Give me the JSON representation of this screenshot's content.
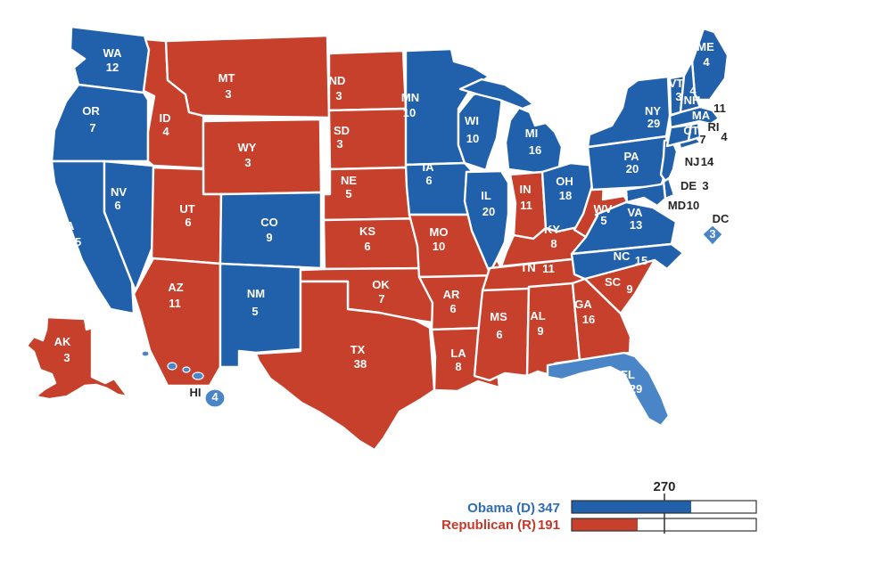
{
  "map": {
    "name": "U.S. presidential electoral college results map"
  },
  "colors": {
    "democrat": "#2160ab",
    "democrat_light": "#4a85c8",
    "republican": "#c7402c",
    "text_dark": "#262626",
    "legend_democrat_text": "#2f6cb6",
    "legend_republican_text": "#c3392a",
    "background": "#ffffff"
  },
  "states": [
    {
      "abbr": "WA",
      "votes": 12,
      "party": "D"
    },
    {
      "abbr": "OR",
      "votes": 7,
      "party": "D"
    },
    {
      "abbr": "CA",
      "votes": 55,
      "party": "D"
    },
    {
      "abbr": "NV",
      "votes": 6,
      "party": "D"
    },
    {
      "abbr": "ID",
      "votes": 4,
      "party": "R"
    },
    {
      "abbr": "MT",
      "votes": 3,
      "party": "R"
    },
    {
      "abbr": "WY",
      "votes": 3,
      "party": "R"
    },
    {
      "abbr": "UT",
      "votes": 6,
      "party": "R"
    },
    {
      "abbr": "CO",
      "votes": 9,
      "party": "D"
    },
    {
      "abbr": "AZ",
      "votes": 11,
      "party": "R"
    },
    {
      "abbr": "NM",
      "votes": 5,
      "party": "D"
    },
    {
      "abbr": "AK",
      "votes": 3,
      "party": "R"
    },
    {
      "abbr": "HI",
      "votes": 4,
      "party": "D",
      "light": true
    },
    {
      "abbr": "ND",
      "votes": 3,
      "party": "R"
    },
    {
      "abbr": "SD",
      "votes": 3,
      "party": "R"
    },
    {
      "abbr": "NE",
      "votes": 5,
      "party": "R"
    },
    {
      "abbr": "KS",
      "votes": 6,
      "party": "R"
    },
    {
      "abbr": "OK",
      "votes": 7,
      "party": "R"
    },
    {
      "abbr": "TX",
      "votes": 38,
      "party": "R"
    },
    {
      "abbr": "MN",
      "votes": 10,
      "party": "D"
    },
    {
      "abbr": "IA",
      "votes": 6,
      "party": "D"
    },
    {
      "abbr": "MO",
      "votes": 10,
      "party": "R"
    },
    {
      "abbr": "AR",
      "votes": 6,
      "party": "R"
    },
    {
      "abbr": "LA",
      "votes": 8,
      "party": "R"
    },
    {
      "abbr": "WI",
      "votes": 10,
      "party": "D"
    },
    {
      "abbr": "IL",
      "votes": 20,
      "party": "D"
    },
    {
      "abbr": "MS",
      "votes": 6,
      "party": "R"
    },
    {
      "abbr": "MI",
      "votes": 16,
      "party": "D"
    },
    {
      "abbr": "IN",
      "votes": 11,
      "party": "R"
    },
    {
      "abbr": "OH",
      "votes": 18,
      "party": "D"
    },
    {
      "abbr": "KY",
      "votes": 8,
      "party": "R"
    },
    {
      "abbr": "TN",
      "votes": 11,
      "party": "R"
    },
    {
      "abbr": "AL",
      "votes": 9,
      "party": "R"
    },
    {
      "abbr": "GA",
      "votes": 16,
      "party": "R"
    },
    {
      "abbr": "FL",
      "votes": 29,
      "party": "D",
      "light": true
    },
    {
      "abbr": "WV",
      "votes": 5,
      "party": "R"
    },
    {
      "abbr": "VA",
      "votes": 13,
      "party": "D"
    },
    {
      "abbr": "NC",
      "votes": 15,
      "party": "D"
    },
    {
      "abbr": "SC",
      "votes": 9,
      "party": "R"
    },
    {
      "abbr": "PA",
      "votes": 20,
      "party": "D"
    },
    {
      "abbr": "NY",
      "votes": 29,
      "party": "D"
    },
    {
      "abbr": "NJ",
      "votes": 14,
      "party": "D"
    },
    {
      "abbr": "DE",
      "votes": 3,
      "party": "D"
    },
    {
      "abbr": "MD",
      "votes": 10,
      "party": "D"
    },
    {
      "abbr": "DC",
      "votes": 3,
      "party": "D",
      "light": true
    },
    {
      "abbr": "ME",
      "votes": 4,
      "party": "D"
    },
    {
      "abbr": "VT",
      "votes": 3,
      "party": "D"
    },
    {
      "abbr": "NH",
      "votes": 4,
      "party": "D"
    },
    {
      "abbr": "MA",
      "votes": 11,
      "party": "D"
    },
    {
      "abbr": "CT",
      "votes": 7,
      "party": "D"
    },
    {
      "abbr": "RI",
      "votes": 4,
      "party": "D"
    }
  ],
  "legend": {
    "threshold_label": "270",
    "threshold_value": 270,
    "rows": [
      {
        "label": "Obama (D)",
        "votes": 347,
        "party": "D"
      },
      {
        "label": "Republican (R)",
        "votes": 191,
        "party": "R"
      }
    ]
  }
}
